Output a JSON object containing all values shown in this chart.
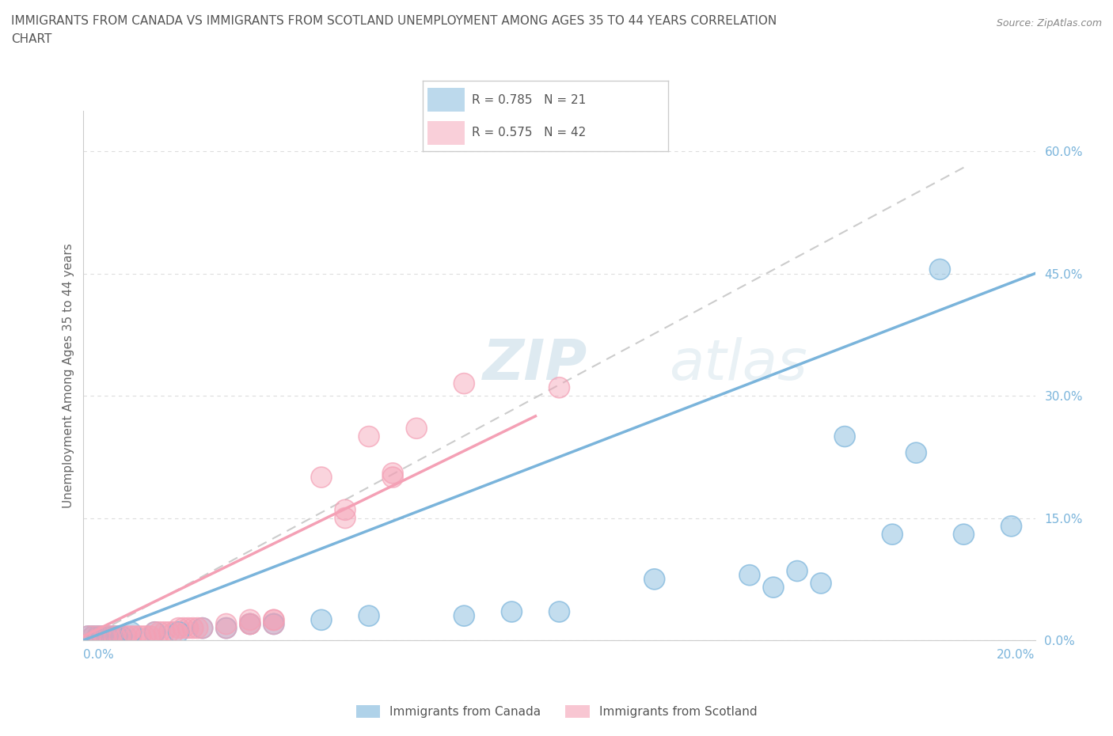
{
  "title_line1": "IMMIGRANTS FROM CANADA VS IMMIGRANTS FROM SCOTLAND UNEMPLOYMENT AMONG AGES 35 TO 44 YEARS CORRELATION",
  "title_line2": "CHART",
  "source": "Source: ZipAtlas.com",
  "ylabel": "Unemployment Among Ages 35 to 44 years",
  "legend_label_canada": "Immigrants from Canada",
  "legend_label_scotland": "Immigrants from Scotland",
  "color_canada": "#7ab4db",
  "color_scotland": "#f4a0b5",
  "watermark_zip": "ZIP",
  "watermark_atlas": "atlas",
  "canada_points": [
    [
      0.001,
      0.005
    ],
    [
      0.002,
      0.005
    ],
    [
      0.003,
      0.005
    ],
    [
      0.004,
      0.005
    ],
    [
      0.005,
      0.005
    ],
    [
      0.006,
      0.005
    ],
    [
      0.007,
      0.005
    ],
    [
      0.008,
      0.005
    ],
    [
      0.01,
      0.01
    ],
    [
      0.015,
      0.01
    ],
    [
      0.02,
      0.01
    ],
    [
      0.025,
      0.015
    ],
    [
      0.03,
      0.015
    ],
    [
      0.035,
      0.02
    ],
    [
      0.04,
      0.02
    ],
    [
      0.05,
      0.025
    ],
    [
      0.06,
      0.03
    ],
    [
      0.08,
      0.03
    ],
    [
      0.09,
      0.035
    ],
    [
      0.1,
      0.035
    ],
    [
      0.12,
      0.075
    ],
    [
      0.14,
      0.08
    ],
    [
      0.145,
      0.065
    ],
    [
      0.15,
      0.085
    ],
    [
      0.155,
      0.07
    ],
    [
      0.16,
      0.25
    ],
    [
      0.17,
      0.13
    ],
    [
      0.175,
      0.23
    ],
    [
      0.18,
      0.455
    ],
    [
      0.185,
      0.13
    ],
    [
      0.195,
      0.14
    ]
  ],
  "scotland_points": [
    [
      0.001,
      0.005
    ],
    [
      0.002,
      0.005
    ],
    [
      0.003,
      0.005
    ],
    [
      0.004,
      0.005
    ],
    [
      0.005,
      0.005
    ],
    [
      0.006,
      0.005
    ],
    [
      0.007,
      0.005
    ],
    [
      0.008,
      0.005
    ],
    [
      0.009,
      0.005
    ],
    [
      0.01,
      0.005
    ],
    [
      0.011,
      0.005
    ],
    [
      0.012,
      0.005
    ],
    [
      0.013,
      0.005
    ],
    [
      0.014,
      0.005
    ],
    [
      0.015,
      0.01
    ],
    [
      0.016,
      0.01
    ],
    [
      0.017,
      0.01
    ],
    [
      0.018,
      0.01
    ],
    [
      0.019,
      0.01
    ],
    [
      0.02,
      0.015
    ],
    [
      0.021,
      0.015
    ],
    [
      0.022,
      0.015
    ],
    [
      0.023,
      0.015
    ],
    [
      0.024,
      0.015
    ],
    [
      0.025,
      0.015
    ],
    [
      0.03,
      0.015
    ],
    [
      0.03,
      0.02
    ],
    [
      0.035,
      0.02
    ],
    [
      0.035,
      0.02
    ],
    [
      0.035,
      0.025
    ],
    [
      0.04,
      0.02
    ],
    [
      0.04,
      0.025
    ],
    [
      0.04,
      0.025
    ],
    [
      0.05,
      0.2
    ],
    [
      0.055,
      0.16
    ],
    [
      0.055,
      0.15
    ],
    [
      0.06,
      0.25
    ],
    [
      0.065,
      0.2
    ],
    [
      0.065,
      0.205
    ],
    [
      0.07,
      0.26
    ],
    [
      0.08,
      0.315
    ],
    [
      0.1,
      0.31
    ]
  ],
  "xmin": 0.0,
  "xmax": 0.2,
  "ymin": 0.0,
  "ymax": 0.65,
  "ytick_vals": [
    0.0,
    0.15,
    0.3,
    0.45,
    0.6
  ],
  "ytick_labels": [
    "0.0%",
    "15.0%",
    "30.0%",
    "45.0%",
    "60.0%"
  ],
  "xtick_left_label": "0.0%",
  "xtick_right_label": "20.0%",
  "grid_color": "#dddddd",
  "background_color": "#ffffff",
  "title_color": "#555555",
  "axis_color": "#cccccc",
  "tick_color_blue": "#7ab4db",
  "source_color": "#888888"
}
